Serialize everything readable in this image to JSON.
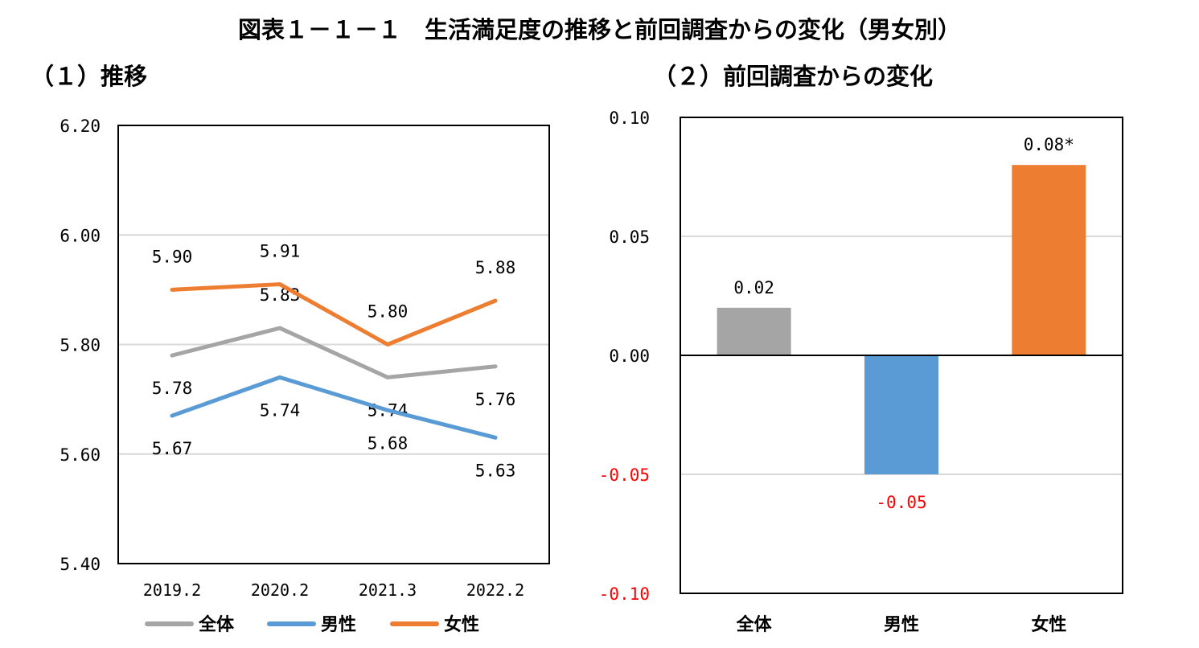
{
  "page": {
    "title": "図表１－１－１　生活満足度の推移と前回調査からの変化（男女別）"
  },
  "chart_data": [
    {
      "panel_title": "（１）推移",
      "type": "line",
      "x": [
        "2019.2",
        "2020.2",
        "2021.3",
        "2022.2"
      ],
      "ylim": [
        5.4,
        6.2
      ],
      "yticks": [
        "5.40",
        "5.60",
        "5.80",
        "6.00",
        "6.20"
      ],
      "grid": true,
      "legend_position": "bottom",
      "series": [
        {
          "name": "全体",
          "color": "#a5a5a5",
          "values": [
            5.78,
            5.83,
            5.74,
            5.76
          ],
          "labels": [
            "5.78",
            "5.83",
            "5.74",
            "5.76"
          ]
        },
        {
          "name": "男性",
          "color": "#5b9bd5",
          "values": [
            5.67,
            5.74,
            5.68,
            5.63
          ],
          "labels": [
            "5.67",
            "5.74",
            "5.68",
            "5.63"
          ]
        },
        {
          "name": "女性",
          "color": "#ed7d31",
          "values": [
            5.9,
            5.91,
            5.8,
            5.88
          ],
          "labels": [
            "5.90",
            "5.91",
            "5.80",
            "5.88"
          ]
        }
      ]
    },
    {
      "panel_title": "（２）前回調査からの変化",
      "type": "bar",
      "categories": [
        "全体",
        "男性",
        "女性"
      ],
      "values": [
        0.02,
        -0.05,
        0.08
      ],
      "labels": [
        "0.02",
        "-0.05",
        "0.08*"
      ],
      "colors": [
        "#a5a5a5",
        "#5b9bd5",
        "#ed7d31"
      ],
      "ylim": [
        -0.1,
        0.1
      ],
      "yticks": [
        "-0.10",
        "-0.05",
        "0.00",
        "0.05",
        "0.10"
      ],
      "negative_color": "#ff0000",
      "grid": true
    }
  ]
}
